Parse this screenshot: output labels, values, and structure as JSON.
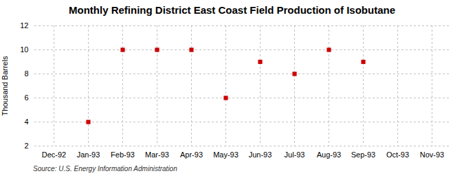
{
  "chart_data": {
    "type": "scatter",
    "title": "Monthly Refining District East Coast Field Production of Isobutane",
    "ylabel": "Thousand Barrels",
    "source": "Source: U.S. Energy Information Administration",
    "categories": [
      "Dec-92",
      "Jan-93",
      "Feb-93",
      "Mar-93",
      "Apr-93",
      "May-93",
      "Jun-93",
      "Jul-93",
      "Aug-93",
      "Sep-93",
      "Oct-93",
      "Nov-93"
    ],
    "values": [
      null,
      4,
      10,
      10,
      10,
      6,
      9,
      8,
      10,
      9,
      null,
      null
    ],
    "color": "#cc0000",
    "marker": "square",
    "ylim": [
      2,
      12
    ],
    "yticks": [
      2,
      4,
      6,
      8,
      10,
      12
    ],
    "grid": true
  }
}
